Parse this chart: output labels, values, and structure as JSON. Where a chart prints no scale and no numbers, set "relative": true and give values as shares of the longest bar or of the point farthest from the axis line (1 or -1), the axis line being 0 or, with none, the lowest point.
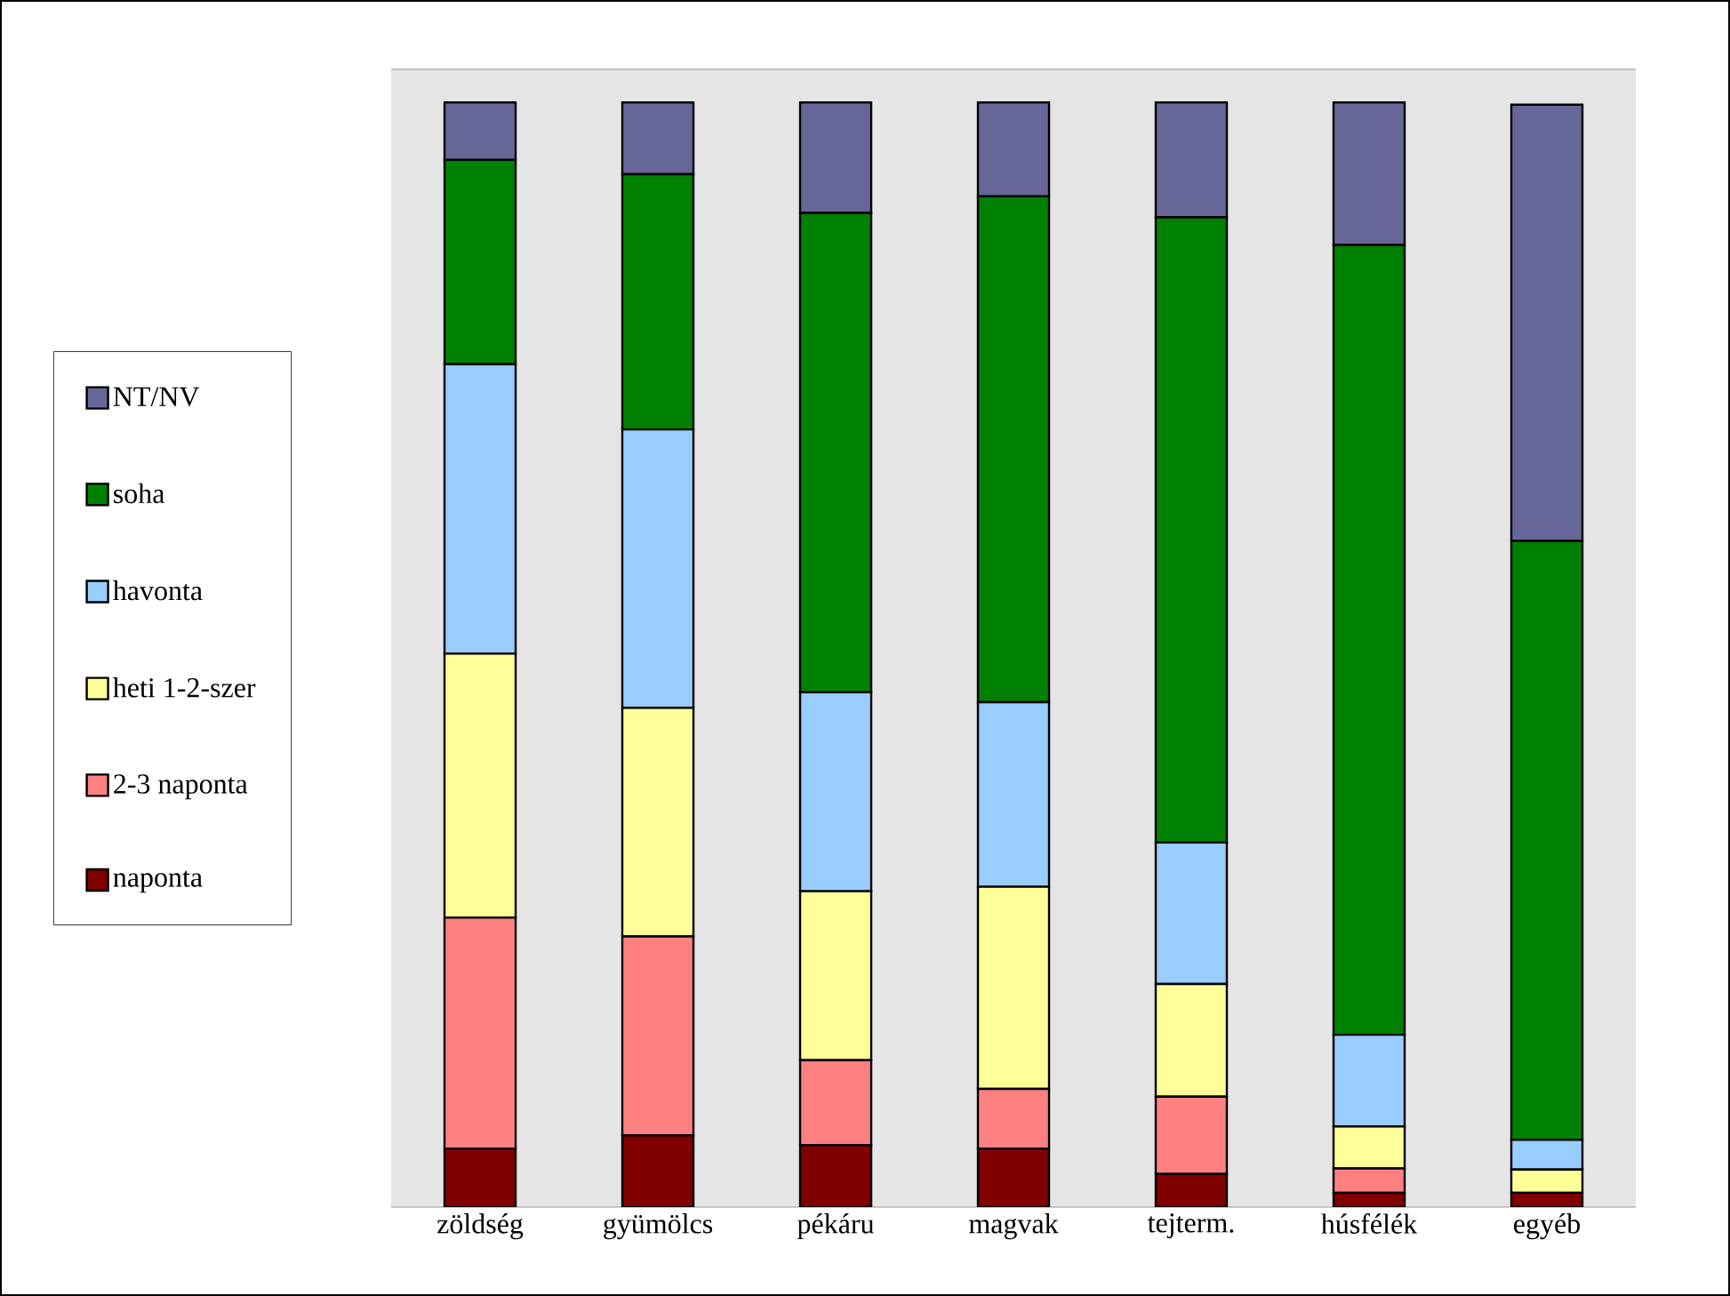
{
  "chart_data": {
    "type": "bar",
    "stacked": true,
    "relative": true,
    "legend": "left",
    "categories": [
      "zöldség",
      "gyümölcs",
      "pékáru",
      "magvak",
      "tejterm.",
      "húsfélék",
      "egyéb"
    ],
    "series": [
      {
        "name": "naponta",
        "color": "#800000",
        "values": [
          0.053,
          0.065,
          0.056,
          0.053,
          0.03,
          0.013,
          0.013
        ]
      },
      {
        "name": "2-3 naponta",
        "color": "#ff8080",
        "values": [
          0.209,
          0.18,
          0.077,
          0.054,
          0.07,
          0.022,
          null
        ]
      },
      {
        "name": "heti 1-2-szer",
        "color": "#ffff99",
        "values": [
          0.239,
          0.207,
          0.153,
          0.183,
          0.102,
          0.038,
          0.021
        ]
      },
      {
        "name": "havonta",
        "color": "#99ccff",
        "values": [
          0.262,
          0.252,
          0.18,
          0.167,
          0.128,
          0.083,
          0.027
        ]
      },
      {
        "name": "soha",
        "color": "#008000",
        "values": [
          0.185,
          0.231,
          0.434,
          0.458,
          0.566,
          0.715,
          0.542
        ]
      },
      {
        "name": "NT/NV",
        "color": "#666699",
        "values": [
          0.052,
          0.065,
          0.1,
          0.085,
          0.104,
          0.129,
          0.395
        ]
      }
    ]
  }
}
